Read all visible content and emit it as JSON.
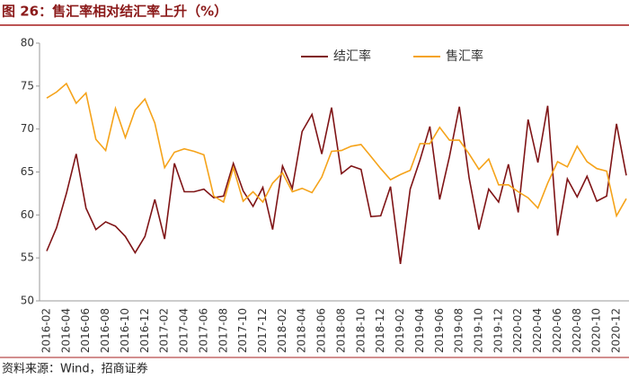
{
  "chart_data": {
    "type": "line",
    "title": "图 26：售汇率相对结汇率上升（%）",
    "source": "资料来源：Wind，招商证券",
    "categories": [
      "2016-02",
      null,
      "2016-04",
      null,
      "2016-06",
      null,
      "2016-08",
      null,
      "2016-10",
      null,
      "2016-12",
      null,
      "2017-02",
      null,
      "2017-04",
      null,
      "2017-06",
      null,
      "2017-08",
      null,
      "2017-10",
      null,
      "2017-12",
      null,
      "2018-02",
      null,
      "2018-04",
      null,
      "2018-06",
      null,
      "2018-08",
      null,
      "2018-10",
      null,
      "2018-12",
      null,
      "2019-02",
      null,
      "2019-04",
      null,
      "2019-06",
      null,
      "2019-08",
      null,
      "2019-10",
      null,
      "2019-12",
      null,
      "2020-02",
      null,
      "2020-04",
      null,
      "2020-06",
      null,
      "2020-08",
      null,
      "2020-10",
      null,
      "2020-12",
      null
    ],
    "series": [
      {
        "name": "结汇率",
        "color": "#7f1416",
        "values": [
          55.8,
          58.5,
          62.5,
          67.1,
          60.8,
          58.3,
          59.2,
          58.7,
          57.5,
          55.6,
          57.5,
          61.8,
          57.2,
          66.0,
          62.7,
          62.7,
          63.0,
          62.0,
          62.2,
          66.0,
          62.8,
          61.0,
          63.2,
          58.3,
          65.7,
          63.1,
          69.7,
          71.7,
          67.1,
          72.5,
          64.8,
          65.7,
          65.3,
          59.8,
          59.9,
          63.3,
          54.3,
          63.0,
          66.4,
          70.3,
          61.8,
          66.8,
          72.6,
          64.3,
          58.3,
          63.0,
          61.5,
          65.9,
          60.3,
          71.1,
          66.1,
          72.7,
          57.6,
          64.2,
          62.1,
          64.5,
          61.6,
          62.2,
          70.6,
          64.6
        ]
      },
      {
        "name": "售汇率",
        "color": "#f5a31a",
        "values": [
          73.6,
          74.3,
          75.3,
          73.0,
          74.2,
          68.8,
          67.5,
          72.4,
          69.0,
          72.2,
          73.5,
          70.7,
          65.5,
          67.3,
          67.7,
          67.4,
          67.0,
          62.2,
          61.5,
          65.5,
          61.6,
          62.7,
          61.5,
          63.7,
          64.9,
          62.7,
          63.1,
          62.6,
          64.4,
          67.4,
          67.5,
          68.0,
          68.2,
          66.8,
          65.4,
          64.1,
          64.7,
          65.2,
          68.3,
          68.3,
          70.2,
          68.7,
          68.7,
          67.1,
          65.3,
          66.5,
          63.5,
          63.5,
          62.7,
          62.0,
          60.8,
          63.7,
          66.2,
          65.6,
          68.0,
          66.2,
          65.4,
          65.1,
          59.9,
          61.9
        ]
      }
    ],
    "ylim": [
      50,
      80
    ],
    "yticks": [
      50,
      55,
      60,
      65,
      70,
      75,
      80
    ],
    "grid": false,
    "legend": "top-right"
  }
}
